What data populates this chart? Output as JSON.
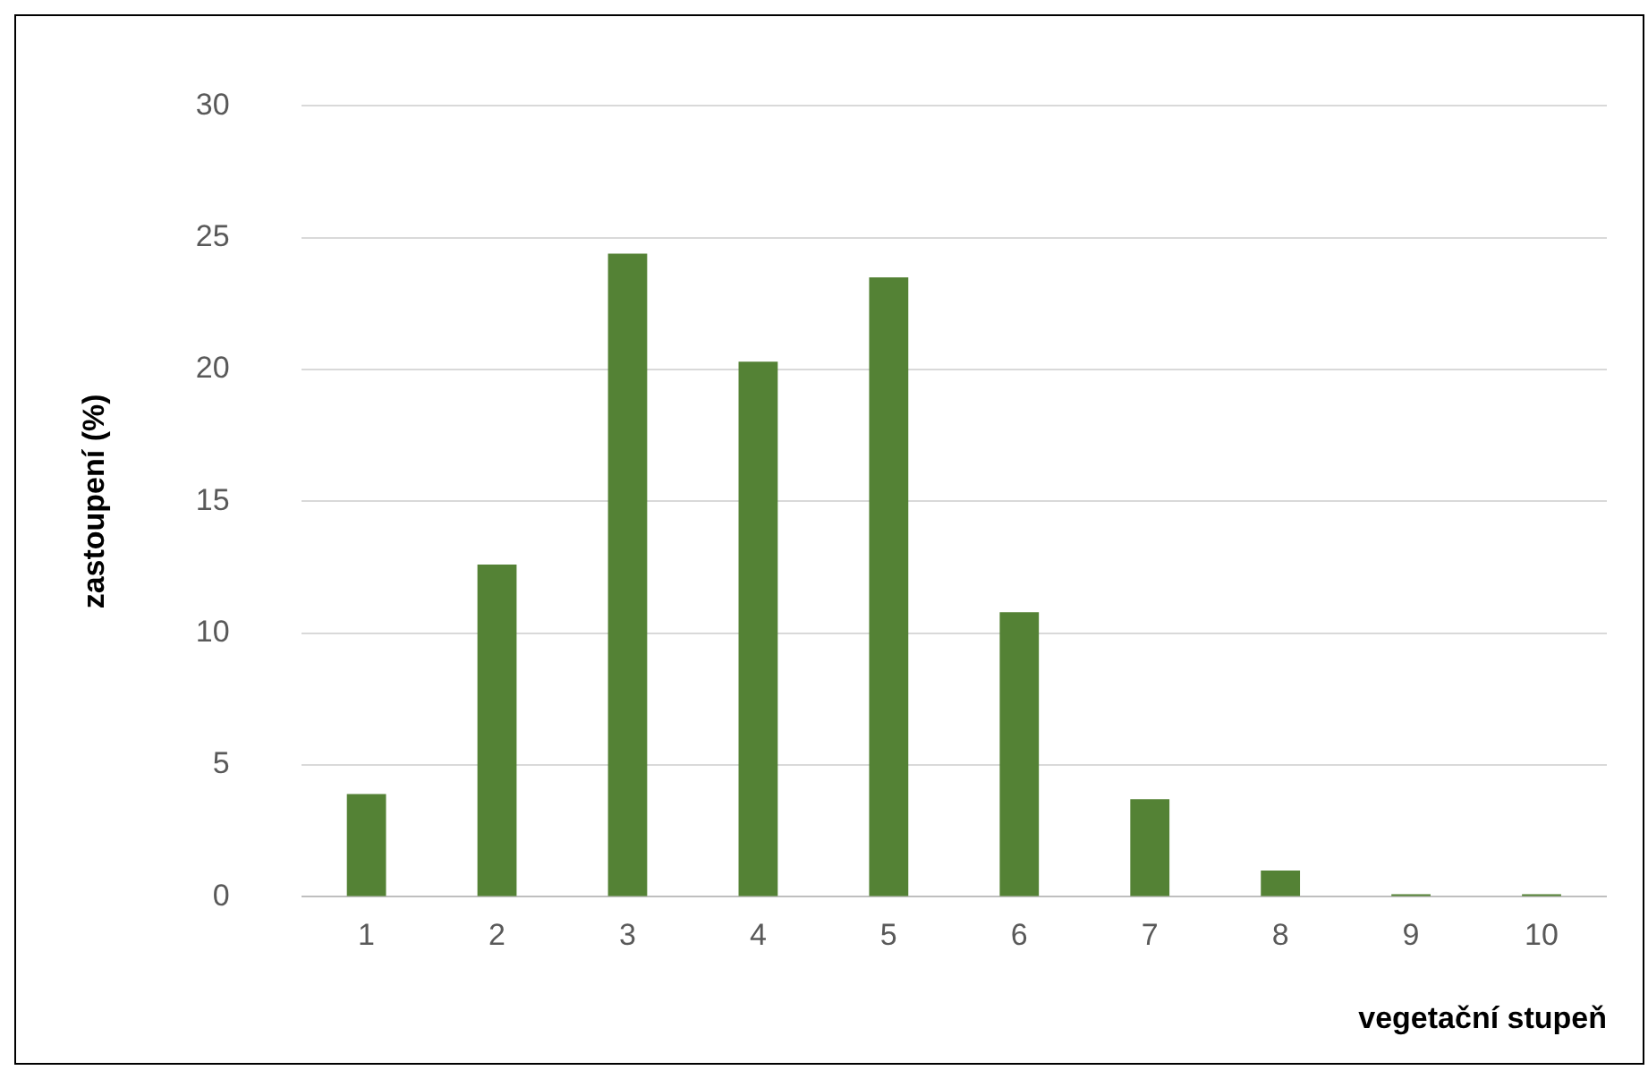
{
  "chart_data": {
    "type": "bar",
    "xlabel": "vegetační stupeň",
    "ylabel": "zastoupení (%)",
    "categories": [
      "1",
      "2",
      "3",
      "4",
      "5",
      "6",
      "7",
      "8",
      "9",
      "10"
    ],
    "values": [
      3.9,
      12.6,
      24.4,
      20.3,
      23.5,
      10.8,
      3.7,
      1.0,
      0.1,
      0.1
    ],
    "color": "#548235",
    "ylim": [
      0,
      30
    ],
    "yticks": [
      0,
      5,
      10,
      15,
      20,
      25,
      30
    ],
    "grid": "y",
    "legend": false
  }
}
